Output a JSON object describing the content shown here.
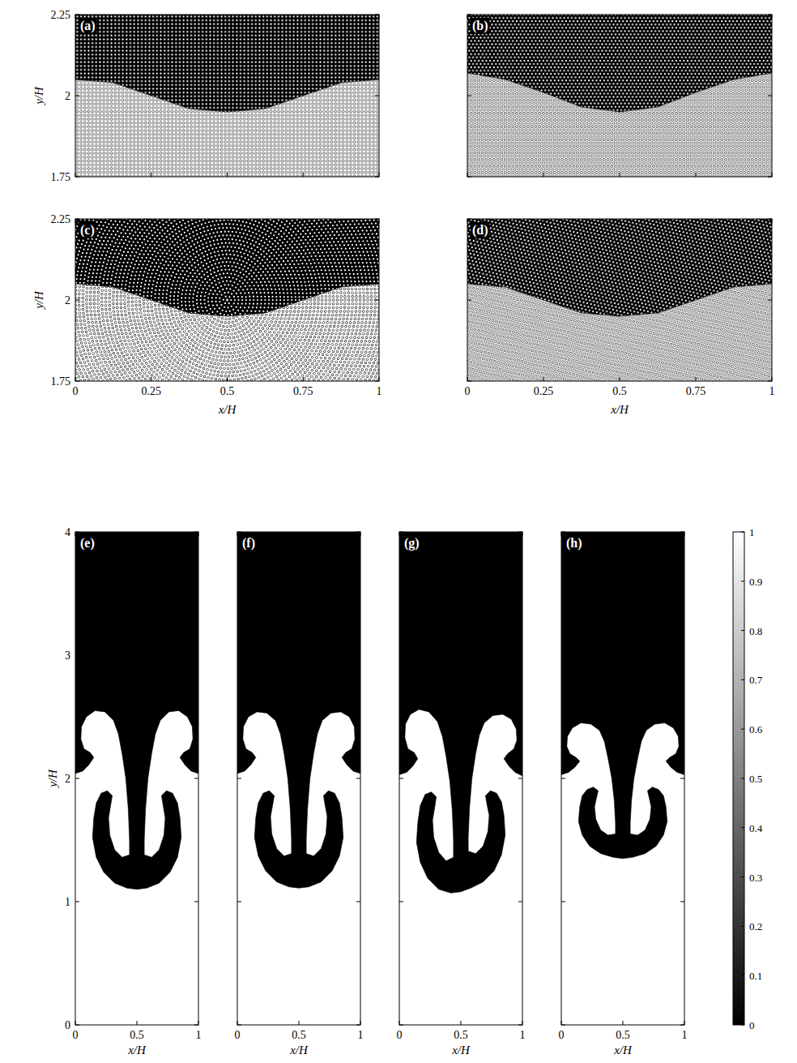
{
  "chart_data": [
    {
      "type": "square-lattice",
      "title": "(a)",
      "xlim": [
        0,
        1
      ],
      "ylim": [
        1.75,
        2.25
      ],
      "xticks": [
        0,
        0.25,
        0.5,
        0.75,
        1
      ],
      "yticks": [
        1.75,
        2,
        2.25
      ],
      "tick_labels": "y",
      "ylabel": "y/H",
      "interface": {
        "x": [
          0,
          0.125,
          0.25,
          0.375,
          0.5,
          0.625,
          0.75,
          0.875,
          1
        ],
        "y": [
          2.05,
          2.04,
          2.0,
          1.96,
          1.95,
          1.96,
          2.0,
          2.04,
          2.05
        ]
      }
    },
    {
      "type": "hexagonal-lattice",
      "title": "(b)",
      "xlim": [
        0,
        1
      ],
      "ylim": [
        1.75,
        2.25
      ],
      "xticks": [
        0,
        0.25,
        0.5,
        0.75,
        1
      ],
      "yticks": [
        1.75,
        2,
        2.25
      ],
      "tick_labels": false,
      "interface": {
        "x": [
          0,
          0.125,
          0.25,
          0.375,
          0.5,
          0.625,
          0.75,
          0.875,
          1
        ],
        "y": [
          2.07,
          2.05,
          2.01,
          1.965,
          1.95,
          1.965,
          2.01,
          2.05,
          2.07
        ]
      }
    },
    {
      "type": "concentric-lattice",
      "title": "(c)",
      "xlim": [
        0,
        1
      ],
      "ylim": [
        1.75,
        2.25
      ],
      "xticks": [
        0,
        0.25,
        0.5,
        0.75,
        1
      ],
      "yticks": [
        1.75,
        2,
        2.25
      ],
      "tick_labels": true,
      "xlabel": "x/H",
      "ylabel": "y/H",
      "interface": {
        "x": [
          0,
          0.125,
          0.25,
          0.375,
          0.5,
          0.625,
          0.75,
          0.875,
          1
        ],
        "y": [
          2.05,
          2.04,
          2.0,
          1.96,
          1.95,
          1.96,
          2.0,
          2.04,
          2.05
        ]
      }
    },
    {
      "type": "relaxed-lattice",
      "title": "(d)",
      "xlim": [
        0,
        1
      ],
      "ylim": [
        1.75,
        2.25
      ],
      "xticks": [
        0,
        0.25,
        0.5,
        0.75,
        1
      ],
      "yticks": [
        1.75,
        2,
        2.25
      ],
      "tick_labels": "x",
      "xlabel": "x/H",
      "interface": {
        "x": [
          0,
          0.125,
          0.25,
          0.375,
          0.5,
          0.625,
          0.75,
          0.875,
          1
        ],
        "y": [
          2.05,
          2.04,
          2.0,
          1.96,
          1.95,
          1.96,
          2.0,
          2.04,
          2.05
        ]
      }
    },
    {
      "type": "concentration",
      "title": "(e)",
      "xlim": [
        0,
        1
      ],
      "ylim": [
        0,
        4
      ],
      "xticks": [
        0,
        0.5,
        1
      ],
      "yticks": [
        0,
        1,
        2,
        3,
        4
      ],
      "tick_labels": true,
      "xlabel": "x/H",
      "ylabel": "y/H",
      "fluid_values": {
        "upper": 0,
        "lower": 1
      },
      "interface": {
        "x": [
          0,
          0.06,
          0.11,
          0.15,
          0.12,
          0.07,
          0.045,
          0.05,
          0.09,
          0.16,
          0.24,
          0.31,
          0.35,
          0.38,
          0.41,
          0.43,
          0.44,
          0.44,
          0.38,
          0.32,
          0.28,
          0.27,
          0.29,
          0.3,
          0.26,
          0.21,
          0.17,
          0.15,
          0.14,
          0.17,
          0.23,
          0.32,
          0.42,
          0.5,
          0.58,
          0.68,
          0.77,
          0.83,
          0.86,
          0.85,
          0.83,
          0.79,
          0.74,
          0.7,
          0.71,
          0.73,
          0.72,
          0.68,
          0.62,
          0.56,
          0.56,
          0.57,
          0.59,
          0.62,
          0.65,
          0.69,
          0.76,
          0.84,
          0.91,
          0.95,
          0.955,
          0.93,
          0.88,
          0.85,
          0.89,
          0.94,
          1
        ],
        "y": [
          2.04,
          2.06,
          2.11,
          2.17,
          2.21,
          2.24,
          2.32,
          2.42,
          2.5,
          2.55,
          2.54,
          2.47,
          2.36,
          2.2,
          2.0,
          1.75,
          1.5,
          1.38,
          1.36,
          1.42,
          1.54,
          1.68,
          1.8,
          1.86,
          1.9,
          1.88,
          1.8,
          1.68,
          1.52,
          1.36,
          1.24,
          1.15,
          1.11,
          1.1,
          1.11,
          1.15,
          1.24,
          1.36,
          1.52,
          1.68,
          1.8,
          1.88,
          1.9,
          1.86,
          1.8,
          1.68,
          1.54,
          1.42,
          1.36,
          1.38,
          1.5,
          1.75,
          2.0,
          2.2,
          2.36,
          2.47,
          2.54,
          2.55,
          2.5,
          2.42,
          2.32,
          2.24,
          2.21,
          2.17,
          2.11,
          2.06,
          2.04
        ]
      }
    },
    {
      "type": "concentration",
      "title": "(f)",
      "xlim": [
        0,
        1
      ],
      "ylim": [
        0,
        4
      ],
      "xticks": [
        0,
        0.5,
        1
      ],
      "yticks": [
        0,
        1,
        2,
        3,
        4
      ],
      "tick_labels": "x",
      "xlabel": "x/H",
      "fluid_values": {
        "upper": 0,
        "lower": 1
      },
      "interface": {
        "x": [
          0,
          0.06,
          0.11,
          0.15,
          0.12,
          0.07,
          0.045,
          0.05,
          0.09,
          0.16,
          0.24,
          0.31,
          0.35,
          0.38,
          0.41,
          0.43,
          0.44,
          0.44,
          0.38,
          0.32,
          0.28,
          0.27,
          0.29,
          0.3,
          0.26,
          0.21,
          0.17,
          0.15,
          0.14,
          0.17,
          0.23,
          0.32,
          0.42,
          0.5,
          0.58,
          0.68,
          0.77,
          0.83,
          0.86,
          0.85,
          0.83,
          0.79,
          0.74,
          0.7,
          0.71,
          0.73,
          0.72,
          0.68,
          0.62,
          0.56,
          0.56,
          0.57,
          0.59,
          0.62,
          0.65,
          0.69,
          0.76,
          0.84,
          0.91,
          0.95,
          0.955,
          0.93,
          0.88,
          0.85,
          0.89,
          0.94,
          1
        ],
        "y": [
          2.04,
          2.06,
          2.11,
          2.17,
          2.21,
          2.24,
          2.32,
          2.42,
          2.5,
          2.54,
          2.53,
          2.47,
          2.36,
          2.2,
          2.0,
          1.75,
          1.5,
          1.39,
          1.37,
          1.43,
          1.55,
          1.69,
          1.8,
          1.86,
          1.9,
          1.88,
          1.8,
          1.68,
          1.52,
          1.37,
          1.25,
          1.16,
          1.12,
          1.11,
          1.12,
          1.16,
          1.25,
          1.37,
          1.52,
          1.68,
          1.8,
          1.88,
          1.9,
          1.86,
          1.8,
          1.69,
          1.55,
          1.43,
          1.37,
          1.39,
          1.5,
          1.75,
          2.0,
          2.2,
          2.36,
          2.47,
          2.53,
          2.54,
          2.5,
          2.42,
          2.32,
          2.24,
          2.21,
          2.17,
          2.11,
          2.06,
          2.04
        ]
      }
    },
    {
      "type": "concentration",
      "title": "(g)",
      "xlim": [
        0,
        1
      ],
      "ylim": [
        0,
        4
      ],
      "xticks": [
        0,
        0.5,
        1
      ],
      "yticks": [
        0,
        1,
        2,
        3,
        4
      ],
      "tick_labels": "x",
      "xlabel": "x/H",
      "fluid_values": {
        "upper": 0,
        "lower": 1
      },
      "interface": {
        "x": [
          0,
          0.06,
          0.11,
          0.15,
          0.12,
          0.07,
          0.045,
          0.05,
          0.09,
          0.16,
          0.24,
          0.31,
          0.35,
          0.38,
          0.41,
          0.43,
          0.44,
          0.44,
          0.38,
          0.32,
          0.28,
          0.27,
          0.29,
          0.3,
          0.26,
          0.21,
          0.17,
          0.15,
          0.14,
          0.17,
          0.23,
          0.32,
          0.42,
          0.5,
          0.58,
          0.68,
          0.77,
          0.83,
          0.86,
          0.85,
          0.83,
          0.79,
          0.74,
          0.7,
          0.71,
          0.73,
          0.72,
          0.68,
          0.62,
          0.56,
          0.56,
          0.57,
          0.59,
          0.62,
          0.65,
          0.69,
          0.76,
          0.84,
          0.91,
          0.95,
          0.955,
          0.93,
          0.88,
          0.85,
          0.89,
          0.94,
          1
        ],
        "y": [
          2.03,
          2.05,
          2.1,
          2.16,
          2.21,
          2.24,
          2.33,
          2.44,
          2.52,
          2.56,
          2.54,
          2.46,
          2.34,
          2.18,
          1.98,
          1.74,
          1.5,
          1.36,
          1.33,
          1.4,
          1.52,
          1.66,
          1.78,
          1.85,
          1.89,
          1.87,
          1.78,
          1.64,
          1.48,
          1.32,
          1.19,
          1.1,
          1.07,
          1.08,
          1.11,
          1.16,
          1.25,
          1.38,
          1.54,
          1.7,
          1.81,
          1.88,
          1.9,
          1.86,
          1.8,
          1.7,
          1.57,
          1.45,
          1.39,
          1.41,
          1.52,
          1.76,
          2.0,
          2.2,
          2.35,
          2.45,
          2.51,
          2.52,
          2.48,
          2.4,
          2.31,
          2.24,
          2.2,
          2.16,
          2.1,
          2.05,
          2.02
        ]
      }
    },
    {
      "type": "concentration",
      "title": "(h)",
      "xlim": [
        0,
        1
      ],
      "ylim": [
        0,
        4
      ],
      "xticks": [
        0,
        0.5,
        1
      ],
      "yticks": [
        0,
        1,
        2,
        3,
        4
      ],
      "tick_labels": "x",
      "xlabel": "x/H",
      "fluid_values": {
        "upper": 0,
        "lower": 1
      },
      "colorbar": {
        "range": [
          0,
          1
        ],
        "ticks": [
          0,
          0.1,
          0.2,
          0.3,
          0.4,
          0.5,
          0.6,
          0.7,
          0.8,
          0.9,
          1
        ]
      },
      "interface": {
        "x": [
          0,
          0.06,
          0.11,
          0.15,
          0.12,
          0.07,
          0.045,
          0.05,
          0.09,
          0.16,
          0.24,
          0.31,
          0.35,
          0.38,
          0.41,
          0.43,
          0.44,
          0.44,
          0.38,
          0.32,
          0.28,
          0.27,
          0.29,
          0.3,
          0.26,
          0.21,
          0.17,
          0.15,
          0.14,
          0.17,
          0.23,
          0.32,
          0.42,
          0.5,
          0.58,
          0.68,
          0.77,
          0.83,
          0.86,
          0.85,
          0.83,
          0.79,
          0.74,
          0.7,
          0.71,
          0.73,
          0.72,
          0.68,
          0.62,
          0.56,
          0.56,
          0.57,
          0.59,
          0.62,
          0.65,
          0.69,
          0.76,
          0.84,
          0.91,
          0.95,
          0.955,
          0.93,
          0.88,
          0.85,
          0.89,
          0.94,
          1
        ],
        "y": [
          2.03,
          2.05,
          2.09,
          2.14,
          2.17,
          2.2,
          2.26,
          2.34,
          2.41,
          2.45,
          2.44,
          2.39,
          2.3,
          2.16,
          2.0,
          1.82,
          1.64,
          1.55,
          1.54,
          1.58,
          1.67,
          1.77,
          1.86,
          1.9,
          1.93,
          1.91,
          1.86,
          1.77,
          1.65,
          1.54,
          1.45,
          1.39,
          1.36,
          1.35,
          1.36,
          1.39,
          1.45,
          1.54,
          1.65,
          1.77,
          1.86,
          1.91,
          1.93,
          1.9,
          1.86,
          1.77,
          1.67,
          1.58,
          1.54,
          1.55,
          1.64,
          1.82,
          2.0,
          2.16,
          2.3,
          2.39,
          2.44,
          2.45,
          2.41,
          2.34,
          2.26,
          2.2,
          2.17,
          2.14,
          2.09,
          2.05,
          2.03
        ]
      }
    }
  ]
}
